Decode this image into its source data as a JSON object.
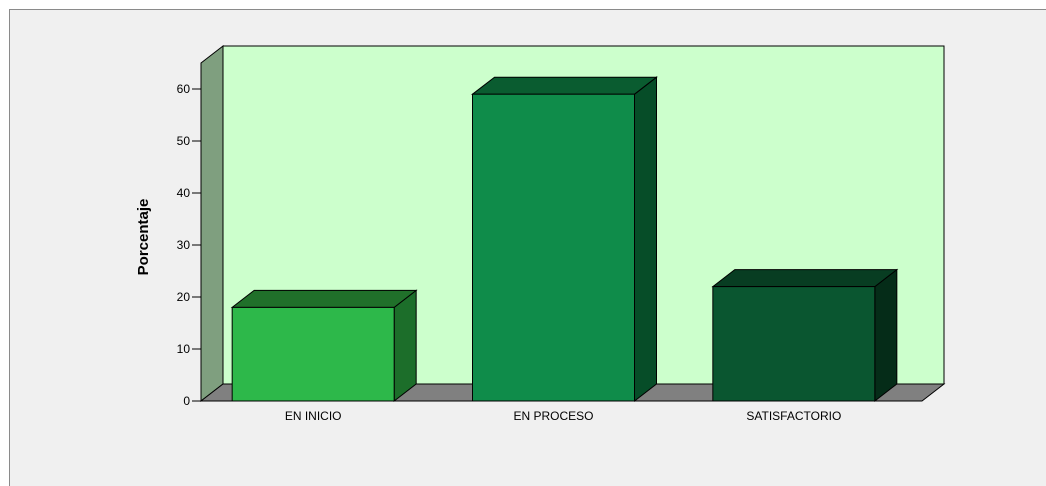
{
  "chart_data": {
    "type": "bar",
    "ylabel": "Porcentaje",
    "xlabel": "",
    "categories": [
      "EN INICIO",
      "EN PROCESO",
      "SATISFACTORIO"
    ],
    "values": [
      18,
      59,
      22
    ],
    "ylim": [
      0,
      65
    ],
    "yticks": [
      0,
      10,
      20,
      30,
      40,
      50,
      60
    ],
    "grid": false,
    "style": "3d",
    "colors": {
      "plot_background": "#ccffcc",
      "left_wall": "#7f9f7f",
      "floor": "#808080",
      "bars": [
        {
          "front": "#2db84a",
          "top": "#20702a",
          "side": "#1c6e2a"
        },
        {
          "front": "#0f8c4a",
          "top": "#0a5c30",
          "side": "#064d28"
        },
        {
          "front": "#0a5630",
          "top": "#083d22",
          "side": "#052c18"
        }
      ]
    }
  }
}
